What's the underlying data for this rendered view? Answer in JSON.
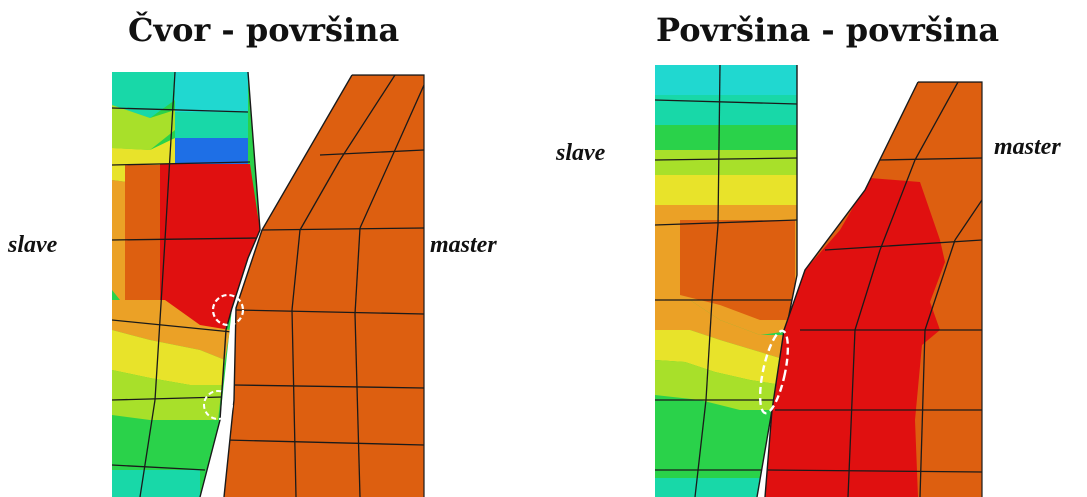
{
  "titles": {
    "left": "Čvor - površina",
    "right": "Površina - površina"
  },
  "labels": {
    "slave_left": "slave",
    "master_left": "master",
    "slave_right": "slave",
    "master_right": "master"
  },
  "colors": {
    "blue": "#1e6fe6",
    "cyan": "#20d8d0",
    "teal": "#18d8a8",
    "green": "#2ad24a",
    "yellow_green": "#a8e02a",
    "yellow": "#e8e32a",
    "orange_light": "#eba126",
    "orange": "#dd5f10",
    "red": "#e01010",
    "mesh_line": "#1a1a1a",
    "contact_marker": "#ffffff"
  }
}
